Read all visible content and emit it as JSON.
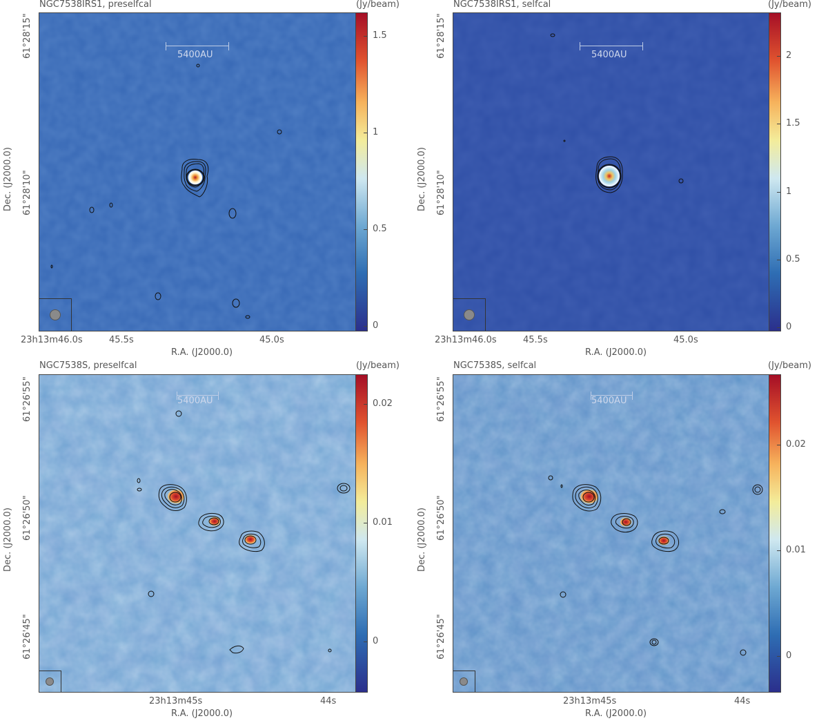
{
  "panels": [
    {
      "title": "NGC7538IRS1, preselfcal",
      "unit": "(Jy/beam)",
      "colorbar_ticks": [
        "1.5",
        "1",
        "0.5",
        "0"
      ],
      "colorbar_tick_values": [
        1.5,
        1.0,
        0.5,
        0.0
      ],
      "colorbar_range": [
        -0.03,
        1.62
      ],
      "scale_label": "5400AU",
      "xlabel": "R.A. (J2000.0)",
      "ylabel": "Dec. (J2000.0)",
      "xticks": [
        "23h13m46.0s",
        "45.5s",
        "45.0s"
      ],
      "yticks": [
        "61°28'15\"",
        "61°28'10\""
      ],
      "background": "#3768b5"
    },
    {
      "title": "NGC7538IRS1, selfcal",
      "unit": "(Jy/beam)",
      "colorbar_ticks": [
        "2",
        "1.5",
        "1",
        "0.5",
        "0"
      ],
      "colorbar_tick_values": [
        2.0,
        1.5,
        1.0,
        0.5,
        0.0
      ],
      "colorbar_range": [
        -0.03,
        2.32
      ],
      "scale_label": "5400AU",
      "xlabel": "R.A. (J2000.0)",
      "ylabel": "Dec. (J2000.0)",
      "xticks": [
        "23h13m46.0s",
        "45.5s",
        "45.0s"
      ],
      "yticks": [
        "61°28'15\"",
        "61°28'10\""
      ],
      "background": "#2f4fa6"
    },
    {
      "title": "NGC7538S, preselfcal",
      "unit": "(Jy/beam)",
      "colorbar_ticks": [
        "0.02",
        "0.01",
        "0"
      ],
      "colorbar_tick_values": [
        0.02,
        0.01,
        0.0
      ],
      "colorbar_range": [
        -0.0043,
        0.0225
      ],
      "scale_label": "5400AU",
      "xlabel": "R.A. (J2000.0)",
      "ylabel": "Dec. (J2000.0)",
      "xticks": [
        "23h13m45s",
        "44s"
      ],
      "yticks": [
        "61°26'55\"",
        "61°26'50\"",
        "61°26'45\""
      ],
      "background": "#6fa6d2"
    },
    {
      "title": "NGC7538S, selfcal",
      "unit": "(Jy/beam)",
      "colorbar_ticks": [
        "0.02",
        "0.01",
        "0"
      ],
      "colorbar_tick_values": [
        0.02,
        0.01,
        0.0
      ],
      "colorbar_range": [
        -0.0035,
        0.0267
      ],
      "scale_label": "5400AU",
      "xlabel": "R.A. (J2000.0)",
      "ylabel": "Dec. (J2000.0)",
      "xticks": [
        "23h13m45s",
        "44s"
      ],
      "yticks": [
        "61°26'55\"",
        "61°26'50\"",
        "61°26'45\""
      ],
      "background": "#5e95c8"
    }
  ]
}
